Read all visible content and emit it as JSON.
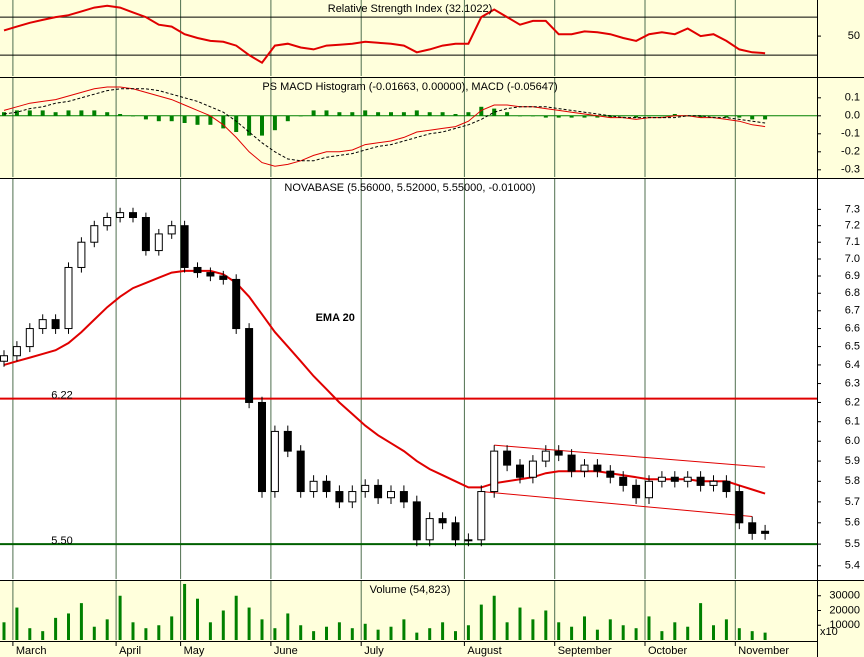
{
  "chart_data": [
    {
      "type": "line",
      "title": "Relative Strength Index (32.1022)",
      "color": "#e00000",
      "values": [
        56,
        60,
        64,
        67,
        70,
        72,
        76,
        80,
        82,
        80,
        75,
        70,
        62,
        60,
        52,
        48,
        45,
        44,
        40,
        30,
        22,
        40,
        42,
        38,
        36,
        40,
        41,
        42,
        44,
        43,
        42,
        40,
        33,
        36,
        40,
        42,
        42,
        70,
        78,
        70,
        62,
        66,
        66,
        52,
        52,
        55,
        54,
        52,
        48,
        45,
        52,
        54,
        52,
        58,
        50,
        52,
        45,
        36,
        33,
        32
      ],
      "ylim": [
        8,
        88
      ],
      "yticks": [
        50
      ],
      "reference_lines": [
        70,
        30
      ]
    },
    {
      "type": "macd",
      "title": "PS MACD Histogram (-0.01663, 0.00000), MACD (-0.05647)",
      "series": [
        {
          "color": "#e00000",
          "values": [
            0.03,
            0.05,
            0.07,
            0.08,
            0.09,
            0.11,
            0.13,
            0.15,
            0.16,
            0.16,
            0.15,
            0.13,
            0.11,
            0.09,
            0.06,
            0.03,
            0.0,
            -0.05,
            -0.12,
            -0.2,
            -0.26,
            -0.28,
            -0.27,
            -0.25,
            -0.22,
            -0.2,
            -0.2,
            -0.19,
            -0.16,
            -0.15,
            -0.14,
            -0.12,
            -0.09,
            -0.08,
            -0.07,
            -0.06,
            -0.03,
            0.03,
            0.06,
            0.06,
            0.05,
            0.05,
            0.04,
            0.03,
            0.02,
            0.01,
            0.0,
            -0.01,
            -0.01,
            -0.02,
            -0.01,
            -0.01,
            0.0,
            0.0,
            -0.01,
            -0.01,
            -0.02,
            -0.03,
            -0.05,
            -0.06
          ]
        },
        {
          "color": "#000000",
          "dash": true,
          "values": [
            0.01,
            0.02,
            0.04,
            0.05,
            0.07,
            0.08,
            0.1,
            0.12,
            0.14,
            0.15,
            0.15,
            0.15,
            0.14,
            0.12,
            0.1,
            0.08,
            0.05,
            0.02,
            -0.03,
            -0.09,
            -0.15,
            -0.2,
            -0.24,
            -0.25,
            -0.25,
            -0.23,
            -0.22,
            -0.21,
            -0.19,
            -0.17,
            -0.16,
            -0.14,
            -0.12,
            -0.1,
            -0.09,
            -0.07,
            -0.05,
            -0.02,
            0.02,
            0.04,
            0.05,
            0.05,
            0.05,
            0.04,
            0.03,
            0.02,
            0.01,
            0.0,
            -0.01,
            -0.01,
            -0.01,
            -0.01,
            -0.01,
            0.0,
            0.0,
            -0.01,
            -0.01,
            -0.02,
            -0.03,
            -0.04
          ]
        },
        {
          "color": "#008000",
          "kind": "histogram",
          "values": [
            0.02,
            0.03,
            0.03,
            0.03,
            0.02,
            0.03,
            0.03,
            0.03,
            0.02,
            0.01,
            0.0,
            -0.02,
            -0.03,
            -0.03,
            -0.04,
            -0.05,
            -0.05,
            -0.07,
            -0.09,
            -0.11,
            -0.11,
            -0.08,
            -0.03,
            0.0,
            0.03,
            0.03,
            0.02,
            0.02,
            0.03,
            0.02,
            0.02,
            0.02,
            0.03,
            0.02,
            0.02,
            0.01,
            0.02,
            0.05,
            0.04,
            0.02,
            0.0,
            0.0,
            -0.01,
            -0.01,
            -0.01,
            -0.01,
            -0.01,
            -0.01,
            0.0,
            -0.01,
            0.0,
            0.0,
            0.01,
            0.0,
            -0.01,
            0.0,
            -0.01,
            -0.01,
            -0.02,
            -0.02
          ]
        }
      ],
      "ylim": [
        -0.34,
        0.21
      ],
      "yticks": [
        0.1,
        {
          "value": 0,
          "label": "0.0"
        },
        -0.1,
        -0.2,
        -0.3
      ]
    },
    {
      "type": "candlestick",
      "title": "NOVABASE (5.56000, 5.52000, 5.55000, -0.01000)",
      "log_scale": true,
      "open": [
        6.42,
        6.45,
        6.5,
        6.6,
        6.65,
        6.6,
        6.95,
        7.1,
        7.2,
        7.25,
        7.28,
        7.25,
        7.05,
        7.15,
        7.2,
        6.95,
        6.92,
        6.9,
        6.88,
        6.6,
        6.2,
        5.75,
        6.05,
        5.95,
        5.75,
        5.8,
        5.75,
        5.7,
        5.75,
        5.78,
        5.72,
        5.75,
        5.7,
        5.52,
        5.62,
        5.6,
        5.52,
        5.52,
        5.75,
        5.95,
        5.88,
        5.82,
        5.9,
        5.95,
        5.93,
        5.85,
        5.88,
        5.85,
        5.82,
        5.78,
        5.72,
        5.8,
        5.82,
        5.8,
        5.82,
        5.78,
        5.8,
        5.75,
        5.6,
        5.56
      ],
      "high": [
        6.48,
        6.53,
        6.63,
        6.68,
        6.68,
        6.98,
        7.13,
        7.23,
        7.28,
        7.31,
        7.31,
        7.28,
        7.18,
        7.23,
        7.23,
        6.98,
        6.95,
        6.93,
        6.91,
        6.63,
        6.23,
        6.08,
        6.08,
        5.98,
        5.83,
        5.83,
        5.78,
        5.78,
        5.81,
        5.81,
        5.78,
        5.78,
        5.73,
        5.65,
        5.65,
        5.63,
        5.55,
        5.78,
        5.98,
        5.98,
        5.91,
        5.93,
        5.98,
        5.98,
        5.96,
        5.91,
        5.91,
        5.88,
        5.85,
        5.81,
        5.83,
        5.85,
        5.85,
        5.85,
        5.85,
        5.83,
        5.83,
        5.78,
        5.63,
        5.59
      ],
      "low": [
        6.39,
        6.42,
        6.47,
        6.57,
        6.57,
        6.57,
        6.92,
        7.07,
        7.17,
        7.22,
        7.22,
        7.02,
        7.02,
        7.12,
        6.92,
        6.89,
        6.87,
        6.85,
        6.57,
        6.17,
        5.72,
        5.72,
        5.92,
        5.72,
        5.72,
        5.72,
        5.67,
        5.67,
        5.72,
        5.69,
        5.69,
        5.67,
        5.49,
        5.49,
        5.57,
        5.49,
        5.49,
        5.49,
        5.72,
        5.85,
        5.79,
        5.79,
        5.87,
        5.9,
        5.82,
        5.82,
        5.82,
        5.79,
        5.75,
        5.69,
        5.69,
        5.77,
        5.77,
        5.77,
        5.75,
        5.75,
        5.72,
        5.57,
        5.52,
        5.52
      ],
      "close": [
        6.45,
        6.5,
        6.6,
        6.65,
        6.6,
        6.95,
        7.1,
        7.2,
        7.25,
        7.28,
        7.25,
        7.05,
        7.15,
        7.2,
        6.95,
        6.92,
        6.9,
        6.88,
        6.6,
        6.2,
        5.75,
        6.05,
        5.95,
        5.75,
        5.8,
        5.75,
        5.7,
        5.75,
        5.78,
        5.72,
        5.75,
        5.7,
        5.52,
        5.62,
        5.6,
        5.52,
        5.52,
        5.75,
        5.95,
        5.88,
        5.82,
        5.9,
        5.95,
        5.93,
        5.85,
        5.88,
        5.85,
        5.82,
        5.78,
        5.72,
        5.8,
        5.82,
        5.8,
        5.82,
        5.78,
        5.8,
        5.75,
        5.6,
        5.55,
        5.55
      ],
      "overlay": {
        "label": "EMA 20",
        "color": "#e00000",
        "values": [
          6.4,
          6.42,
          6.44,
          6.46,
          6.48,
          6.52,
          6.58,
          6.65,
          6.72,
          6.78,
          6.83,
          6.86,
          6.89,
          6.92,
          6.93,
          6.93,
          6.93,
          6.91,
          6.86,
          6.78,
          6.68,
          6.58,
          6.5,
          6.42,
          6.34,
          6.27,
          6.2,
          6.14,
          6.08,
          6.03,
          5.99,
          5.95,
          5.9,
          5.86,
          5.83,
          5.8,
          5.77,
          5.77,
          5.79,
          5.8,
          5.81,
          5.82,
          5.84,
          5.85,
          5.85,
          5.85,
          5.85,
          5.84,
          5.83,
          5.82,
          5.81,
          5.81,
          5.81,
          5.81,
          5.8,
          5.8,
          5.8,
          5.78,
          5.76,
          5.74
        ]
      },
      "hlines": [
        {
          "value": 6.22,
          "color": "#e00000"
        },
        {
          "value": 5.5,
          "label": "5.50",
          "color": "#006000"
        }
      ],
      "trendlines": [
        {
          "x": [
            38,
            59
          ],
          "values": [
            5.98,
            5.87
          ],
          "color": "#e00000"
        },
        {
          "x": [
            37,
            58
          ],
          "values": [
            5.75,
            5.63
          ],
          "color": "#e00000"
        }
      ],
      "ylim": [
        5.34,
        7.49
      ],
      "yticks": [
        5.4,
        5.5,
        5.6,
        5.7,
        5.8,
        5.9,
        {
          "value": 6,
          "label": "6.0"
        },
        6.1,
        6.2,
        6.3,
        6.4,
        6.5,
        6.6,
        6.7,
        6.8,
        6.9,
        {
          "value": 7,
          "label": "7.0"
        },
        7.1,
        7.2,
        7.3
      ]
    },
    {
      "type": "bar",
      "title": "Volume (54,823)",
      "color": "#008000",
      "axis_note": "x10",
      "categories": [
        null,
        "March",
        null,
        null,
        null,
        null,
        null,
        null,
        null,
        "April",
        null,
        null,
        null,
        null,
        "May",
        null,
        null,
        null,
        null,
        null,
        null,
        "June",
        null,
        null,
        null,
        null,
        null,
        null,
        "July",
        null,
        null,
        null,
        null,
        null,
        null,
        null,
        "August",
        null,
        null,
        null,
        null,
        null,
        null,
        "September",
        null,
        null,
        null,
        null,
        null,
        null,
        "October",
        null,
        null,
        null,
        null,
        null,
        null,
        "November",
        null,
        null
      ],
      "values": [
        12000,
        22000,
        8000,
        6000,
        15000,
        18000,
        25000,
        9000,
        14000,
        30000,
        12000,
        8000,
        10000,
        16000,
        38000,
        28000,
        12000,
        20000,
        30000,
        22000,
        14000,
        8000,
        18000,
        10000,
        6000,
        9000,
        12000,
        8000,
        11000,
        7000,
        9000,
        14000,
        5000,
        8000,
        12000,
        6000,
        10000,
        24000,
        30000,
        12000,
        22000,
        14000,
        20000,
        12000,
        9000,
        16000,
        7000,
        14000,
        10000,
        8000,
        16000,
        6000,
        12000,
        9000,
        25000,
        10000,
        14000,
        8000,
        6000,
        5000
      ],
      "ylim": [
        0,
        40000
      ],
      "yticks": [
        10000,
        20000,
        30000
      ]
    }
  ]
}
